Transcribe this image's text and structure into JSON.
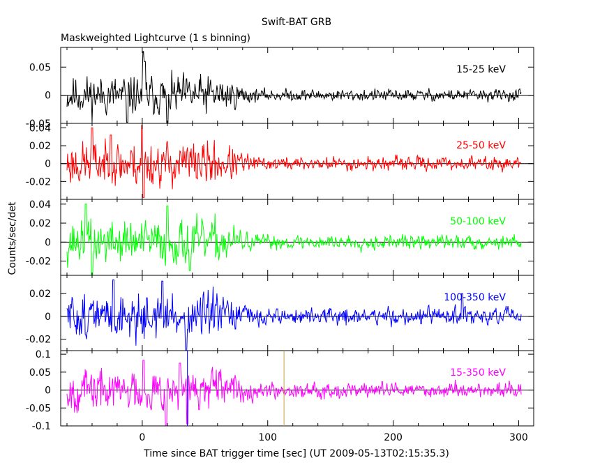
{
  "chart_data": {
    "type": "line",
    "title": "Swift-BAT GRB",
    "subtitle": "Maskweighted Lightcurve (1 s binning)",
    "xlabel": "Time since BAT trigger time [sec] (UT 2009-05-13T02:15:35.3)",
    "ylabel": "Counts/sec/det",
    "xlim": [
      -65,
      312
    ],
    "xticks": [
      0,
      100,
      200,
      300
    ],
    "xtick_labels": [
      "0",
      "100",
      "200",
      "300"
    ],
    "markers": [
      {
        "name": "blue-vertical-line",
        "x": 36,
        "color": "#0000ff"
      },
      {
        "name": "orange-vertical-line",
        "x": 113,
        "color": "#c8a040"
      }
    ],
    "panels": [
      {
        "name": "15-25 keV",
        "color": "#000000",
        "ylim": [
          -0.05,
          0.085
        ],
        "yticks": [
          -0.05,
          0,
          0.05
        ],
        "ytick_labels": [
          "-0.05",
          "0",
          "0.05"
        ],
        "x_start": -60,
        "x_end": 302,
        "noise_early": 0.018,
        "noise_late": 0.0055,
        "seed": 11,
        "spikes": [
          {
            "x": 1,
            "y": 0.078
          },
          {
            "x": 2,
            "y": 0.06
          },
          {
            "x": -12,
            "y": -0.048
          },
          {
            "x": 20,
            "y": -0.05
          }
        ]
      },
      {
        "name": "25-50 keV",
        "color": "#ff0000",
        "ylim": [
          -0.04,
          0.045
        ],
        "yticks": [
          -0.02,
          0,
          0.02,
          0.04
        ],
        "ytick_labels": [
          "-0.02",
          "0",
          "0.02",
          "0.04"
        ],
        "x_start": -60,
        "x_end": 302,
        "noise_early": 0.013,
        "noise_late": 0.004,
        "seed": 23,
        "spikes": [
          {
            "x": 0,
            "y": 0.043
          },
          {
            "x": 1,
            "y": -0.038
          },
          {
            "x": -40,
            "y": 0.04
          },
          {
            "x": -25,
            "y": 0.032
          }
        ]
      },
      {
        "name": "50-100 keV",
        "color": "#00ff00",
        "ylim": [
          -0.035,
          0.045
        ],
        "yticks": [
          -0.02,
          0,
          0.02,
          0.04
        ],
        "ytick_labels": [
          "-0.02",
          "0",
          "0.02",
          "0.04"
        ],
        "x_start": -60,
        "x_end": 302,
        "noise_early": 0.012,
        "noise_late": 0.004,
        "seed": 37,
        "spikes": [
          {
            "x": -45,
            "y": 0.04
          },
          {
            "x": -40,
            "y": -0.034
          },
          {
            "x": 20,
            "y": 0.038
          },
          {
            "x": 38,
            "y": -0.03
          }
        ]
      },
      {
        "name": "100-350 keV",
        "color": "#0000ff",
        "ylim": [
          -0.03,
          0.036
        ],
        "yticks": [
          -0.02,
          0,
          0.02
        ],
        "ytick_labels": [
          "-0.02",
          "0",
          "0.02"
        ],
        "x_start": -60,
        "x_end": 302,
        "noise_early": 0.01,
        "noise_late": 0.004,
        "seed": 51,
        "spikes": [
          {
            "x": -23,
            "y": 0.032
          },
          {
            "x": 16,
            "y": 0.031
          },
          {
            "x": 35,
            "y": -0.03
          },
          {
            "x": 255,
            "y": 0.02
          }
        ]
      },
      {
        "name": "15-350 keV",
        "color": "#ff00ff",
        "ylim": [
          -0.1,
          0.11
        ],
        "yticks": [
          -0.1,
          -0.05,
          0,
          0.05,
          0.1
        ],
        "ytick_labels": [
          "-0.1",
          "-0.05",
          "0",
          "0.05",
          "0.1"
        ],
        "x_start": -60,
        "x_end": 302,
        "noise_early": 0.03,
        "noise_late": 0.011,
        "seed": 67,
        "spikes": [
          {
            "x": 1,
            "y": 0.083
          },
          {
            "x": 19,
            "y": -0.1
          },
          {
            "x": 30,
            "y": 0.075
          },
          {
            "x": 36,
            "y": -0.095
          }
        ]
      }
    ]
  }
}
